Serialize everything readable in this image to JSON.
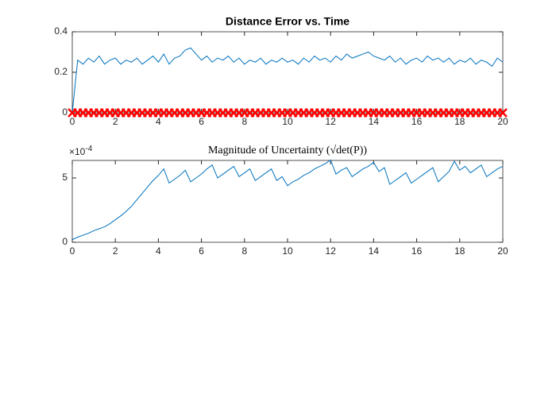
{
  "chart_data": [
    {
      "type": "line",
      "title": "Distance Error vs. Time",
      "x": [
        0,
        0.25,
        0.5,
        0.75,
        1,
        1.25,
        1.5,
        1.75,
        2,
        2.25,
        2.5,
        2.75,
        3,
        3.25,
        3.5,
        3.75,
        4,
        4.25,
        4.5,
        4.75,
        5,
        5.25,
        5.5,
        5.75,
        6,
        6.25,
        6.5,
        6.75,
        7,
        7.25,
        7.5,
        7.75,
        8,
        8.25,
        8.5,
        8.75,
        9,
        9.25,
        9.5,
        9.75,
        10,
        10.25,
        10.5,
        10.75,
        11,
        11.25,
        11.5,
        11.75,
        12,
        12.25,
        12.5,
        12.75,
        13,
        13.25,
        13.5,
        13.75,
        14,
        14.25,
        14.5,
        14.75,
        15,
        15.25,
        15.5,
        15.75,
        16,
        16.25,
        16.5,
        16.75,
        17,
        17.25,
        17.5,
        17.75,
        18,
        18.25,
        18.5,
        18.75,
        19,
        19.25,
        19.5,
        19.75,
        20
      ],
      "series": [
        {
          "color": "#0072bd",
          "marker": "none",
          "values": [
            0,
            0.26,
            0.24,
            0.27,
            0.25,
            0.28,
            0.24,
            0.26,
            0.27,
            0.24,
            0.26,
            0.25,
            0.27,
            0.24,
            0.26,
            0.28,
            0.25,
            0.29,
            0.24,
            0.27,
            0.28,
            0.31,
            0.32,
            0.29,
            0.26,
            0.28,
            0.25,
            0.27,
            0.26,
            0.28,
            0.25,
            0.27,
            0.24,
            0.26,
            0.25,
            0.27,
            0.24,
            0.26,
            0.25,
            0.27,
            0.25,
            0.26,
            0.24,
            0.27,
            0.25,
            0.28,
            0.26,
            0.27,
            0.25,
            0.28,
            0.26,
            0.29,
            0.27,
            0.28,
            0.29,
            0.3,
            0.28,
            0.27,
            0.26,
            0.28,
            0.25,
            0.27,
            0.24,
            0.26,
            0.27,
            0.25,
            0.28,
            0.26,
            0.27,
            0.25,
            0.27,
            0.24,
            0.26,
            0.25,
            0.27,
            0.24,
            0.26,
            0.25,
            0.23,
            0.27,
            0.25
          ]
        },
        {
          "color": "#ff0000",
          "marker": "x",
          "values": [
            0,
            0,
            0,
            0,
            0,
            0,
            0,
            0,
            0,
            0,
            0,
            0,
            0,
            0,
            0,
            0,
            0,
            0,
            0,
            0,
            0,
            0,
            0,
            0,
            0,
            0,
            0,
            0,
            0,
            0,
            0,
            0,
            0,
            0,
            0,
            0,
            0,
            0,
            0,
            0,
            0,
            0,
            0,
            0,
            0,
            0,
            0,
            0,
            0,
            0,
            0,
            0,
            0,
            0,
            0,
            0,
            0,
            0,
            0,
            0,
            0,
            0,
            0,
            0,
            0,
            0,
            0,
            0,
            0,
            0,
            0,
            0,
            0,
            0,
            0,
            0,
            0,
            0,
            0,
            0,
            0
          ]
        }
      ],
      "xlim": [
        0,
        20
      ],
      "xticks": [
        0,
        2,
        4,
        6,
        8,
        10,
        12,
        14,
        16,
        18,
        20
      ],
      "ylim": [
        0,
        0.4
      ],
      "yticks": [
        0,
        0.2,
        0.4
      ]
    },
    {
      "type": "line",
      "title": "Magnitude of Uncertainty (√det(P))",
      "y_multiplier_base": "×10",
      "y_multiplier_exponent": "-4",
      "x": [
        0,
        0.25,
        0.5,
        0.75,
        1,
        1.25,
        1.5,
        1.75,
        2,
        2.25,
        2.5,
        2.75,
        3,
        3.25,
        3.5,
        3.75,
        4,
        4.25,
        4.5,
        4.75,
        5,
        5.25,
        5.5,
        5.75,
        6,
        6.25,
        6.5,
        6.75,
        7,
        7.25,
        7.5,
        7.75,
        8,
        8.25,
        8.5,
        8.75,
        9,
        9.25,
        9.5,
        9.75,
        10,
        10.25,
        10.5,
        10.75,
        11,
        11.25,
        11.5,
        11.75,
        12,
        12.25,
        12.5,
        12.75,
        13,
        13.25,
        13.5,
        13.75,
        14,
        14.25,
        14.5,
        14.75,
        15,
        15.25,
        15.5,
        15.75,
        16,
        16.25,
        16.5,
        16.75,
        17,
        17.25,
        17.5,
        17.75,
        18,
        18.25,
        18.5,
        18.75,
        19,
        19.25,
        19.5,
        19.75,
        20
      ],
      "series": [
        {
          "color": "#0072bd",
          "marker": "none",
          "values": [
            0.2,
            0.4,
            0.55,
            0.7,
            0.9,
            1.05,
            1.2,
            1.45,
            1.75,
            2.05,
            2.4,
            2.8,
            3.3,
            3.8,
            4.3,
            4.8,
            5.2,
            5.7,
            4.6,
            4.9,
            5.2,
            5.6,
            4.7,
            5.0,
            5.3,
            5.7,
            6.0,
            5.0,
            5.3,
            5.6,
            5.9,
            5.1,
            5.4,
            5.7,
            4.8,
            5.1,
            5.4,
            5.7,
            4.8,
            5.1,
            4.4,
            4.7,
            4.9,
            5.2,
            5.4,
            5.7,
            5.9,
            6.1,
            6.4,
            5.3,
            5.6,
            5.8,
            5.1,
            5.4,
            5.7,
            5.9,
            6.2,
            5.5,
            5.8,
            4.5,
            4.8,
            5.1,
            5.4,
            4.6,
            4.9,
            5.2,
            5.5,
            5.8,
            4.7,
            5.1,
            5.5,
            6.3,
            5.6,
            5.9,
            5.4,
            5.7,
            6.0,
            5.1,
            5.4,
            5.7,
            5.9
          ]
        }
      ],
      "xlim": [
        0,
        20
      ],
      "xticks": [
        0,
        2,
        4,
        6,
        8,
        10,
        12,
        14,
        16,
        18,
        20
      ],
      "ylim": [
        0,
        6.36
      ],
      "yticks": [
        0,
        5
      ]
    }
  ]
}
